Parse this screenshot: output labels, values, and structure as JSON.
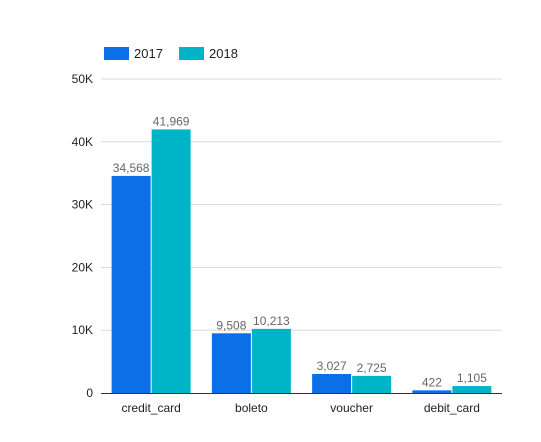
{
  "chart_data": {
    "type": "bar",
    "title": "",
    "xlabel": "",
    "ylabel": "",
    "categories": [
      "credit_card",
      "boleto",
      "voucher",
      "debit_card"
    ],
    "series": [
      {
        "name": "2017",
        "values": [
          34568,
          9508,
          3027,
          422
        ],
        "color": "#0b6fe8",
        "labels": [
          "34,568",
          "9,508",
          "3,027",
          "422"
        ]
      },
      {
        "name": "2018",
        "values": [
          41969,
          10213,
          2725,
          1105
        ],
        "color": "#00b4c8",
        "labels": [
          "41,969",
          "10,213",
          "2,725",
          "1,105"
        ]
      }
    ],
    "ylim": [
      0,
      50000
    ],
    "yticks": [
      0,
      10000,
      20000,
      30000,
      40000,
      50000
    ],
    "ytick_labels": [
      "0",
      "10K",
      "20K",
      "30K",
      "40K",
      "50K"
    ],
    "grid": true,
    "legend_position": "top-left",
    "colors": {
      "grid": "#d9d9d9",
      "axis": "#333333",
      "tick_text": "#222222",
      "data_label": "#666666"
    }
  }
}
